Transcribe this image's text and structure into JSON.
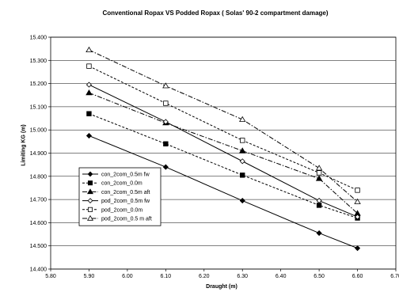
{
  "chart_data": {
    "type": "line",
    "title": "Conventional Ropax VS Podded Ropax ( Solas' 90-2 compartment damage)",
    "xlabel": "Draught (m)",
    "ylabel": "Limiting KG (m)",
    "xlim": [
      5.8,
      6.7
    ],
    "ylim": [
      14.4,
      15.4
    ],
    "xticks": [
      "5.80",
      "5.90",
      "6.00",
      "6.10",
      "6.20",
      "6.30",
      "6.40",
      "6.50",
      "6.60",
      "6.70"
    ],
    "yticks": [
      "14.400",
      "14.500",
      "14.600",
      "14.700",
      "14.800",
      "14.900",
      "15.000",
      "15.100",
      "15.200",
      "15.300",
      "15.400"
    ],
    "grid": "horizontal",
    "legend_position": "left-bottom",
    "x": [
      5.9,
      6.1,
      6.3,
      6.5,
      6.6
    ],
    "series": [
      {
        "name": "con_2com_0.5m fw",
        "marker": "diamond-filled",
        "dash": "solid",
        "values": [
          14.975,
          14.84,
          14.695,
          14.555,
          14.49
        ]
      },
      {
        "name": "con_2com_0.0m",
        "marker": "square-filled",
        "dash": "dotted",
        "values": [
          15.07,
          14.94,
          14.805,
          14.675,
          14.62
        ]
      },
      {
        "name": "con_2com_0.5m aft",
        "marker": "triangle-filled",
        "dash": "dashdot",
        "values": [
          15.16,
          15.03,
          14.91,
          14.79,
          14.64
        ]
      },
      {
        "name": "pod_2com_0.5m fw",
        "marker": "diamond-open",
        "dash": "solid",
        "values": [
          15.195,
          15.035,
          14.865,
          14.695,
          14.625
        ]
      },
      {
        "name": "pod_2com_0.0m",
        "marker": "square-open",
        "dash": "dotted",
        "values": [
          15.275,
          15.115,
          14.955,
          14.815,
          14.74
        ]
      },
      {
        "name": "pod_2com_0.5 m aft",
        "marker": "triangle-open",
        "dash": "dashdot",
        "values": [
          15.345,
          15.19,
          15.045,
          14.835,
          14.69
        ]
      }
    ]
  }
}
